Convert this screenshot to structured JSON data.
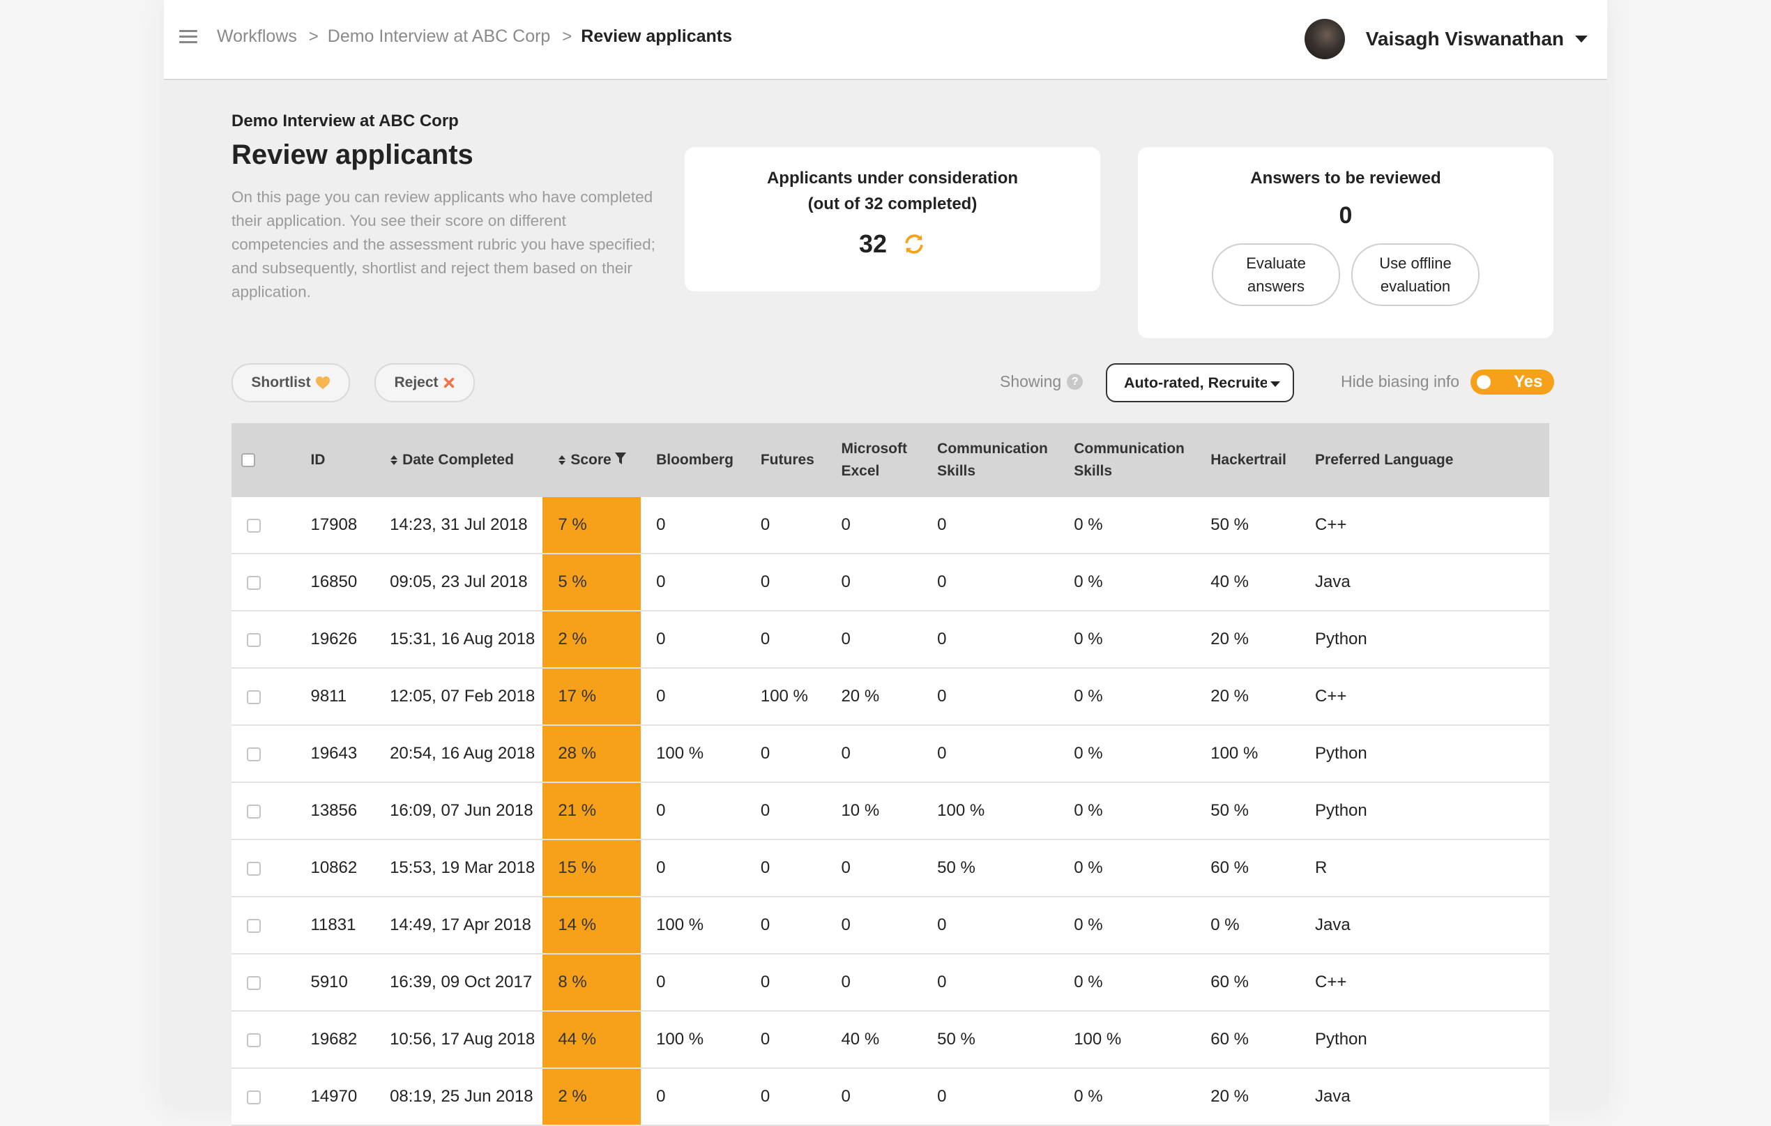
{
  "header": {
    "breadcrumbs": [
      "Workflows",
      "Demo Interview at ABC Corp"
    ],
    "current": "Review applicants",
    "separator": ">",
    "user_name": "Vaisagh Viswanathan"
  },
  "intro": {
    "context": "Demo Interview at ABC Corp",
    "title": "Review applicants",
    "description": "On this page you can review applicants who have completed their application. You see their score on different competencies and the assessment rubric you have specified; and subsequently, shortlist and reject them based on their application."
  },
  "consideration_card": {
    "title_line1": "Applicants under consideration",
    "title_line2": "(out of 32 completed)",
    "count": "32"
  },
  "review_card": {
    "title": "Answers to be reviewed",
    "count": "0",
    "evaluate_line1": "Evaluate",
    "evaluate_line2": "answers",
    "offline_line1": "Use offline",
    "offline_line2": "evaluation"
  },
  "toolbar": {
    "shortlist_label": "Shortlist",
    "reject_label": "Reject",
    "showing_label": "Showing",
    "showing_value": "Auto-rated, Recruiter-rated",
    "hide_biasing_label": "Hide biasing info",
    "toggle_value": "Yes"
  },
  "colors": {
    "accent": "#f7a11a",
    "header_bg": "#d6d6d6"
  },
  "table": {
    "columns": [
      {
        "line1": "ID",
        "line2": ""
      },
      {
        "line1": "Date Completed",
        "line2": ""
      },
      {
        "line1": "Score",
        "line2": ""
      },
      {
        "line1": "Bloomberg",
        "line2": ""
      },
      {
        "line1": "Futures",
        "line2": ""
      },
      {
        "line1": "Microsoft",
        "line2": "Excel"
      },
      {
        "line1": "Communication",
        "line2": "Skills"
      },
      {
        "line1": "Communication",
        "line2": "Skills"
      },
      {
        "line1": "Hackertrail",
        "line2": ""
      },
      {
        "line1": "Preferred Language",
        "line2": ""
      }
    ],
    "rows": [
      [
        "17908",
        "14:23, 31 Jul 2018",
        "7 %",
        "0",
        "0",
        "0",
        "0",
        "0 %",
        "50 %",
        "C++"
      ],
      [
        "16850",
        "09:05, 23 Jul 2018",
        "5 %",
        "0",
        "0",
        "0",
        "0",
        "0 %",
        "40 %",
        "Java"
      ],
      [
        "19626",
        "15:31, 16 Aug 2018",
        "2 %",
        "0",
        "0",
        "0",
        "0",
        "0 %",
        "20 %",
        "Python"
      ],
      [
        "9811",
        "12:05, 07 Feb 2018",
        "17 %",
        "0",
        "100 %",
        "20 %",
        "0",
        "0 %",
        "20 %",
        "C++"
      ],
      [
        "19643",
        "20:54, 16 Aug 2018",
        "28 %",
        "100 %",
        "0",
        "0",
        "0",
        "0 %",
        "100 %",
        "Python"
      ],
      [
        "13856",
        "16:09, 07 Jun 2018",
        "21 %",
        "0",
        "0",
        "10 %",
        "100 %",
        "0 %",
        "50 %",
        "Python"
      ],
      [
        "10862",
        "15:53, 19 Mar 2018",
        "15 %",
        "0",
        "0",
        "0",
        "50 %",
        "0 %",
        "60 %",
        "R"
      ],
      [
        "11831",
        "14:49, 17 Apr 2018",
        "14 %",
        "100 %",
        "0",
        "0",
        "0",
        "0 %",
        "0 %",
        "Java"
      ],
      [
        "5910",
        "16:39, 09 Oct 2017",
        "8 %",
        "0",
        "0",
        "0",
        "0",
        "0 %",
        "60 %",
        "C++"
      ],
      [
        "19682",
        "10:56, 17 Aug 2018",
        "44 %",
        "100 %",
        "0",
        "40 %",
        "50 %",
        "100 %",
        "60 %",
        "Python"
      ],
      [
        "14970",
        "08:19, 25 Jun 2018",
        "2 %",
        "0",
        "0",
        "0",
        "0",
        "0 %",
        "20 %",
        "Java"
      ]
    ]
  }
}
